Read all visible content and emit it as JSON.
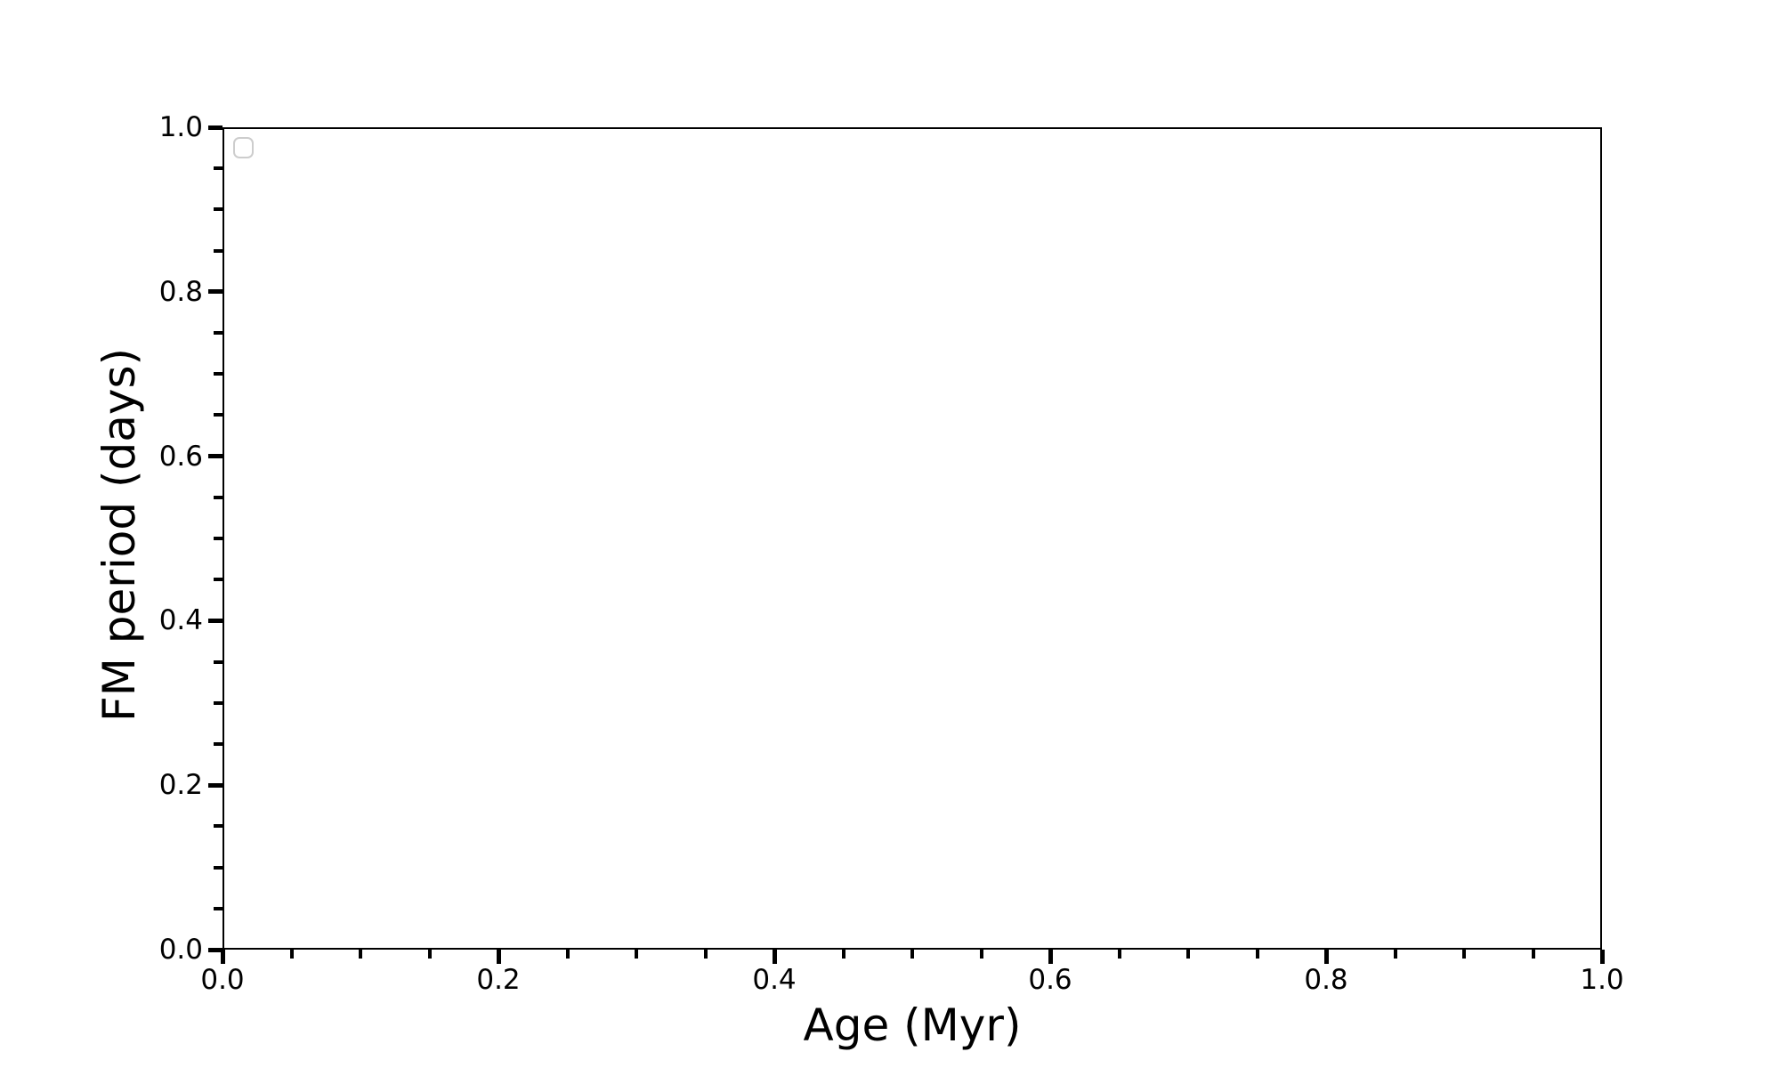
{
  "figure": {
    "background_color": "#ffffff",
    "spine_color": "#000000",
    "tick_color": "#000000",
    "text_color": "#000000",
    "legend_border_color": "#cdcdcd"
  },
  "chart_data": {
    "type": "scatter",
    "title": "",
    "xlabel": "Age (Myr)",
    "ylabel": "FM period (days)",
    "xlim": [
      0.0,
      1.0
    ],
    "ylim": [
      0.0,
      1.0
    ],
    "x_major_ticks": [
      0.0,
      0.2,
      0.4,
      0.6,
      0.8,
      1.0
    ],
    "x_tick_labels": [
      "0.0",
      "0.2",
      "0.4",
      "0.6",
      "0.8",
      "1.0"
    ],
    "y_major_ticks": [
      0.0,
      0.2,
      0.4,
      0.6,
      0.8,
      1.0
    ],
    "y_tick_labels": [
      "0.0",
      "0.2",
      "0.4",
      "0.6",
      "0.8",
      "1.0"
    ],
    "minor_tick_step": 0.05,
    "grid": false,
    "legend": {
      "visible": true,
      "position": "upper left",
      "entries": []
    },
    "series": []
  }
}
